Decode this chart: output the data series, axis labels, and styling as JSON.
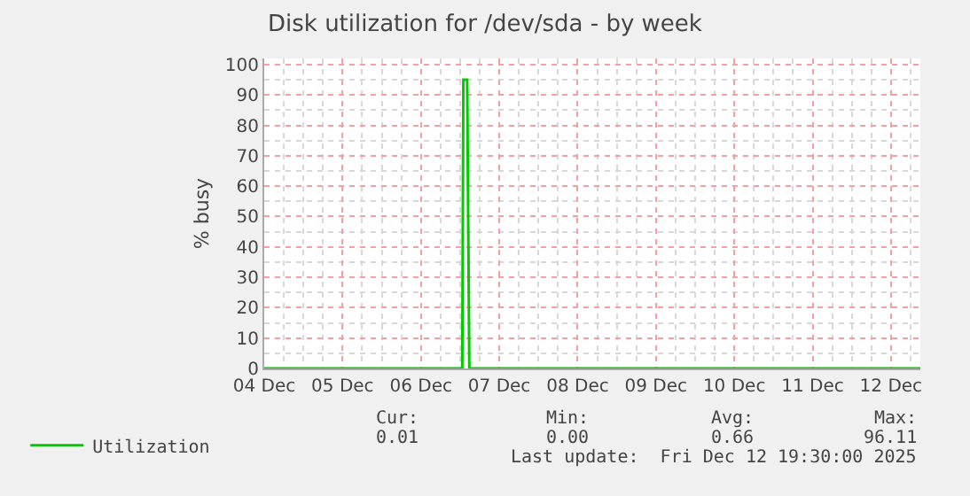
{
  "chart_data": {
    "type": "line",
    "title": "Disk utilization for /dev/sda - by week",
    "ylabel": "% busy",
    "x": [
      "2025-12-04T00:00",
      "2025-12-06T12:40",
      "2025-12-06T13:00",
      "2025-12-06T14:10",
      "2025-12-06T14:50",
      "2025-12-12T09:00"
    ],
    "series": [
      {
        "name": "Utilization",
        "color": "#00cc00",
        "values": [
          0,
          0,
          95,
          95,
          0,
          0
        ]
      }
    ],
    "xlim": [
      "2025-12-04T00:00",
      "2025-12-12T09:00"
    ],
    "xticks": [
      {
        "value": "2025-12-04",
        "label": "04 Dec"
      },
      {
        "value": "2025-12-05",
        "label": "05 Dec"
      },
      {
        "value": "2025-12-06",
        "label": "06 Dec"
      },
      {
        "value": "2025-12-07",
        "label": "07 Dec"
      },
      {
        "value": "2025-12-08",
        "label": "08 Dec"
      },
      {
        "value": "2025-12-09",
        "label": "09 Dec"
      },
      {
        "value": "2025-12-10",
        "label": "10 Dec"
      },
      {
        "value": "2025-12-11",
        "label": "11 Dec"
      },
      {
        "value": "2025-12-12",
        "label": "12 Dec"
      }
    ],
    "ylim": [
      0,
      102
    ],
    "yticks": [
      0,
      10,
      20,
      30,
      40,
      50,
      60,
      70,
      80,
      90,
      100
    ],
    "grid": true,
    "legend": "bottom left",
    "marker": "none",
    "line_style": "solid",
    "annotations": [
      "Cur:",
      "0.01",
      "Min:",
      "0.00",
      "Avg:",
      "0.66",
      "Max:",
      "96.11",
      "Last update:  Fri Dec 12 19:30:00 2025"
    ]
  }
}
